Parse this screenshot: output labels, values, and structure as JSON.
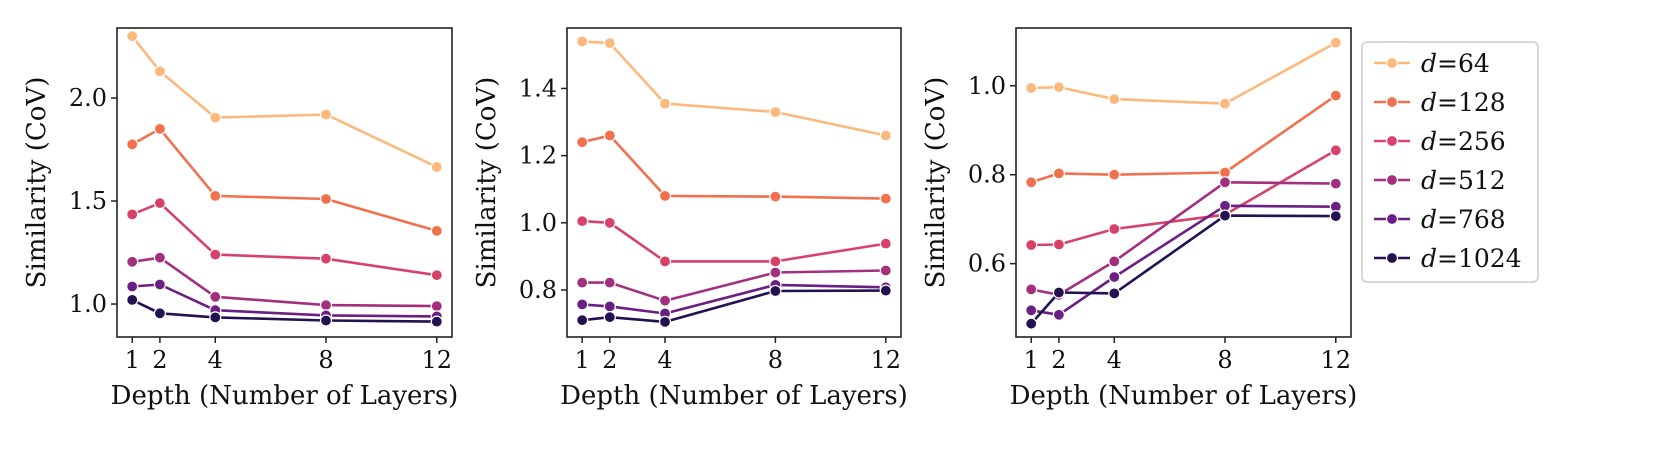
{
  "chart_data": [
    {
      "type": "line",
      "xlabel": "Depth (Number of Layers)",
      "ylabel": "Similarity (CoV)",
      "x": [
        1,
        2,
        4,
        8,
        12
      ],
      "xticks": [
        "1",
        "2",
        "4",
        "8",
        "12"
      ],
      "xlim": [
        0.45,
        12.55
      ],
      "ylim": [
        0.84,
        2.34
      ],
      "yticks": [
        "1.0",
        "1.5",
        "2.0"
      ],
      "ytick_values": [
        1.0,
        1.5,
        2.0
      ],
      "grid": false,
      "series": [
        {
          "name": "64",
          "values": [
            2.3,
            2.13,
            1.905,
            1.92,
            1.665
          ]
        },
        {
          "name": "128",
          "values": [
            1.775,
            1.85,
            1.525,
            1.51,
            1.355
          ]
        },
        {
          "name": "256",
          "values": [
            1.435,
            1.49,
            1.24,
            1.22,
            1.14
          ]
        },
        {
          "name": "512",
          "values": [
            1.205,
            1.225,
            1.035,
            0.995,
            0.99
          ]
        },
        {
          "name": "768",
          "values": [
            1.085,
            1.095,
            0.97,
            0.945,
            0.94
          ]
        },
        {
          "name": "1024",
          "values": [
            1.02,
            0.955,
            0.935,
            0.92,
            0.915
          ]
        }
      ]
    },
    {
      "type": "line",
      "xlabel": "Depth (Number of Layers)",
      "ylabel": "Similarity (CoV)",
      "x": [
        1,
        2,
        4,
        8,
        12
      ],
      "xticks": [
        "1",
        "2",
        "4",
        "8",
        "12"
      ],
      "xlim": [
        0.45,
        12.55
      ],
      "ylim": [
        0.66,
        1.58
      ],
      "yticks": [
        "0.8",
        "1.0",
        "1.2",
        "1.4"
      ],
      "ytick_values": [
        0.8,
        1.0,
        1.2,
        1.4
      ],
      "grid": false,
      "series": [
        {
          "name": "64",
          "values": [
            1.54,
            1.535,
            1.355,
            1.33,
            1.26
          ]
        },
        {
          "name": "128",
          "values": [
            1.24,
            1.26,
            1.08,
            1.078,
            1.072
          ]
        },
        {
          "name": "256",
          "values": [
            1.005,
            1.0,
            0.885,
            0.885,
            0.938
          ]
        },
        {
          "name": "512",
          "values": [
            0.822,
            0.822,
            0.768,
            0.852,
            0.858
          ]
        },
        {
          "name": "768",
          "values": [
            0.757,
            0.751,
            0.73,
            0.815,
            0.808
          ]
        },
        {
          "name": "1024",
          "values": [
            0.71,
            0.719,
            0.705,
            0.797,
            0.798
          ]
        }
      ]
    },
    {
      "type": "line",
      "xlabel": "Depth (Number of Layers)",
      "ylabel": "Similarity (CoV)",
      "x": [
        1,
        2,
        4,
        8,
        12
      ],
      "xticks": [
        "1",
        "2",
        "4",
        "8",
        "12"
      ],
      "xlim": [
        0.45,
        12.55
      ],
      "ylim": [
        0.435,
        1.13
      ],
      "yticks": [
        "0.6",
        "0.8",
        "1.0"
      ],
      "ytick_values": [
        0.6,
        0.8,
        1.0
      ],
      "grid": false,
      "series": [
        {
          "name": "64",
          "values": [
            0.995,
            0.997,
            0.97,
            0.96,
            1.097
          ]
        },
        {
          "name": "128",
          "values": [
            0.783,
            0.803,
            0.8,
            0.805,
            0.978
          ]
        },
        {
          "name": "256",
          "values": [
            0.642,
            0.643,
            0.678,
            0.71,
            0.855
          ]
        },
        {
          "name": "512",
          "values": [
            0.542,
            0.53,
            0.605,
            0.783,
            0.78
          ]
        },
        {
          "name": "768",
          "values": [
            0.495,
            0.485,
            0.57,
            0.73,
            0.728
          ]
        },
        {
          "name": "1024",
          "values": [
            0.465,
            0.535,
            0.533,
            0.708,
            0.707
          ]
        }
      ]
    }
  ],
  "legend": {
    "placement": "right",
    "symbol": "d",
    "equals": "=",
    "entries": [
      "64",
      "128",
      "256",
      "512",
      "768",
      "1024"
    ]
  },
  "colors": [
    "#fcb97d",
    "#f1714f",
    "#d7426a",
    "#a3307e",
    "#6b1f84",
    "#231151"
  ]
}
